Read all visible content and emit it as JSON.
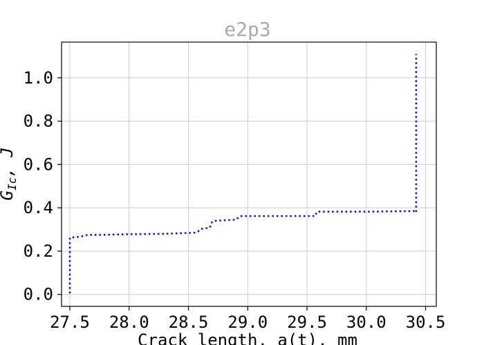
{
  "chart_data": {
    "type": "line",
    "title": "e2p3",
    "xlabel": "Crack length, a(t), mm",
    "ylabel_main": "G",
    "ylabel_sub": "Ic",
    "ylabel_rest": ", J",
    "xlim": [
      27.43,
      30.59
    ],
    "ylim": [
      -0.055,
      1.165
    ],
    "xticks": [
      27.5,
      28.0,
      28.5,
      29.0,
      29.5,
      30.0,
      30.5
    ],
    "xtick_labels": [
      "27.5",
      "28.0",
      "28.5",
      "29.0",
      "29.5",
      "30.0",
      "30.5"
    ],
    "yticks": [
      0.0,
      0.2,
      0.4,
      0.6,
      0.8,
      1.0
    ],
    "ytick_labels": [
      "0.0",
      "0.2",
      "0.4",
      "0.6",
      "0.8",
      "1.0"
    ],
    "grid": true,
    "series": [
      {
        "color": "#0000ff",
        "line_style": "dotted",
        "x": [
          27.5,
          27.5,
          27.56,
          27.6,
          27.65,
          27.75,
          28.0,
          28.3,
          28.55,
          28.58,
          28.6,
          28.68,
          28.7,
          28.72,
          28.9,
          28.93,
          28.95,
          29.2,
          29.57,
          29.58,
          29.6,
          30.0,
          30.42,
          30.42,
          30.42
        ],
        "y": [
          0.005,
          0.262,
          0.265,
          0.268,
          0.275,
          0.275,
          0.278,
          0.28,
          0.285,
          0.29,
          0.302,
          0.308,
          0.335,
          0.34,
          0.345,
          0.36,
          0.362,
          0.362,
          0.362,
          0.38,
          0.382,
          0.382,
          0.385,
          0.38,
          1.11
        ]
      }
    ]
  },
  "colors": {
    "series_line": "#0000ff",
    "grid": "#cccccc",
    "title": "#aaaaaa"
  }
}
